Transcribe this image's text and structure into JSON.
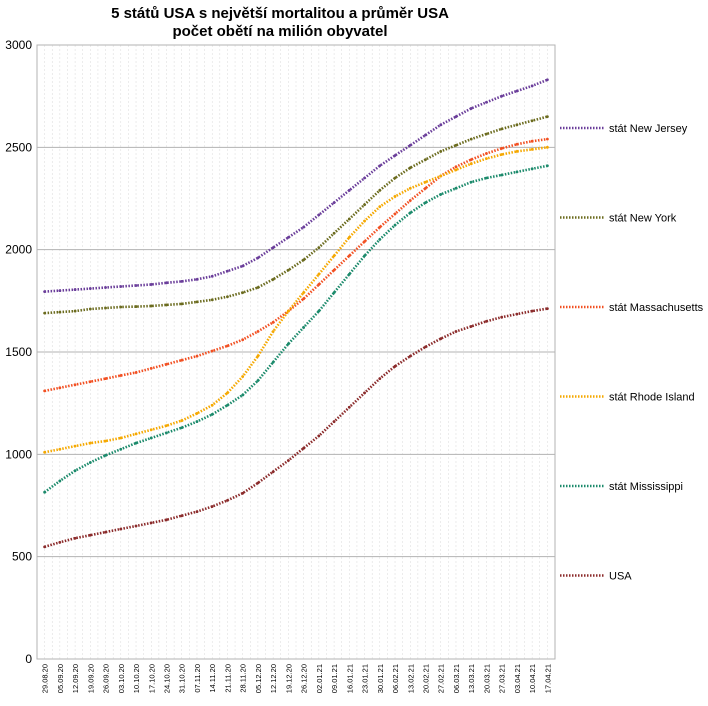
{
  "chart_data": {
    "type": "line",
    "title": "5 států USA s největší mortalitou a průměr USA",
    "subtitle": "počet obětí na milión obyvatel",
    "xlabel": "",
    "ylabel": "",
    "ylim": [
      0,
      3000
    ],
    "yticks": [
      0,
      500,
      1000,
      1500,
      2000,
      2500,
      3000
    ],
    "grid": "horizontal",
    "legend_position": "right",
    "x_ticks": [
      "29.08.20",
      "05.09.20",
      "12.09.20",
      "19.09.20",
      "26.09.20",
      "03.10.20",
      "10.10.20",
      "17.10.20",
      "24.10.20",
      "31.10.20",
      "07.11.20",
      "14.11.20",
      "21.11.20",
      "28.11.20",
      "05.12.20",
      "12.12.20",
      "19.12.20",
      "26.12.20",
      "02.01.21",
      "09.01.21",
      "16.01.21",
      "23.01.21",
      "30.01.21",
      "06.02.21",
      "13.02.21",
      "20.02.21",
      "27.02.21",
      "06.03.21",
      "13.03.21",
      "20.03.21",
      "27.03.21",
      "03.04.21",
      "10.04.21",
      "17.04.21"
    ],
    "series": [
      {
        "name": "stát New Jersey",
        "color": "#6a3d9a",
        "values": [
          1795,
          1800,
          1805,
          1810,
          1815,
          1820,
          1825,
          1830,
          1838,
          1845,
          1855,
          1870,
          1895,
          1920,
          1960,
          2010,
          2060,
          2110,
          2170,
          2230,
          2290,
          2350,
          2410,
          2460,
          2510,
          2560,
          2610,
          2650,
          2690,
          2720,
          2750,
          2775,
          2800,
          2830
        ]
      },
      {
        "name": "stát New York",
        "color": "#6b6b1e",
        "values": [
          1690,
          1695,
          1700,
          1710,
          1715,
          1720,
          1722,
          1725,
          1730,
          1735,
          1745,
          1755,
          1770,
          1790,
          1815,
          1855,
          1900,
          1950,
          2010,
          2080,
          2150,
          2220,
          2290,
          2350,
          2400,
          2440,
          2480,
          2510,
          2540,
          2565,
          2590,
          2610,
          2630,
          2650
        ]
      },
      {
        "name": "stát Massachusetts",
        "color": "#f25022",
        "values": [
          1310,
          1325,
          1340,
          1355,
          1370,
          1385,
          1400,
          1420,
          1440,
          1460,
          1480,
          1505,
          1530,
          1560,
          1600,
          1645,
          1700,
          1760,
          1830,
          1900,
          1970,
          2040,
          2110,
          2175,
          2240,
          2300,
          2360,
          2405,
          2440,
          2470,
          2495,
          2515,
          2530,
          2540
        ]
      },
      {
        "name": "stát Rhode Island",
        "color": "#f5a800",
        "values": [
          1010,
          1025,
          1040,
          1055,
          1065,
          1080,
          1100,
          1120,
          1140,
          1165,
          1200,
          1240,
          1300,
          1380,
          1480,
          1600,
          1700,
          1790,
          1880,
          1970,
          2060,
          2140,
          2210,
          2260,
          2300,
          2330,
          2360,
          2390,
          2420,
          2445,
          2465,
          2480,
          2490,
          2500
        ]
      },
      {
        "name": "stát Mississippi",
        "color": "#1b8a6b",
        "values": [
          815,
          870,
          920,
          960,
          995,
          1025,
          1055,
          1080,
          1105,
          1130,
          1160,
          1195,
          1240,
          1290,
          1360,
          1450,
          1540,
          1620,
          1700,
          1790,
          1880,
          1970,
          2050,
          2120,
          2180,
          2230,
          2270,
          2300,
          2330,
          2350,
          2365,
          2380,
          2395,
          2410
        ]
      },
      {
        "name": "USA",
        "color": "#8b2b2b",
        "values": [
          548,
          570,
          590,
          605,
          620,
          635,
          650,
          665,
          680,
          700,
          720,
          745,
          775,
          810,
          860,
          915,
          970,
          1030,
          1090,
          1160,
          1230,
          1300,
          1370,
          1430,
          1480,
          1525,
          1565,
          1600,
          1625,
          1650,
          1670,
          1685,
          1700,
          1712
        ]
      }
    ]
  }
}
